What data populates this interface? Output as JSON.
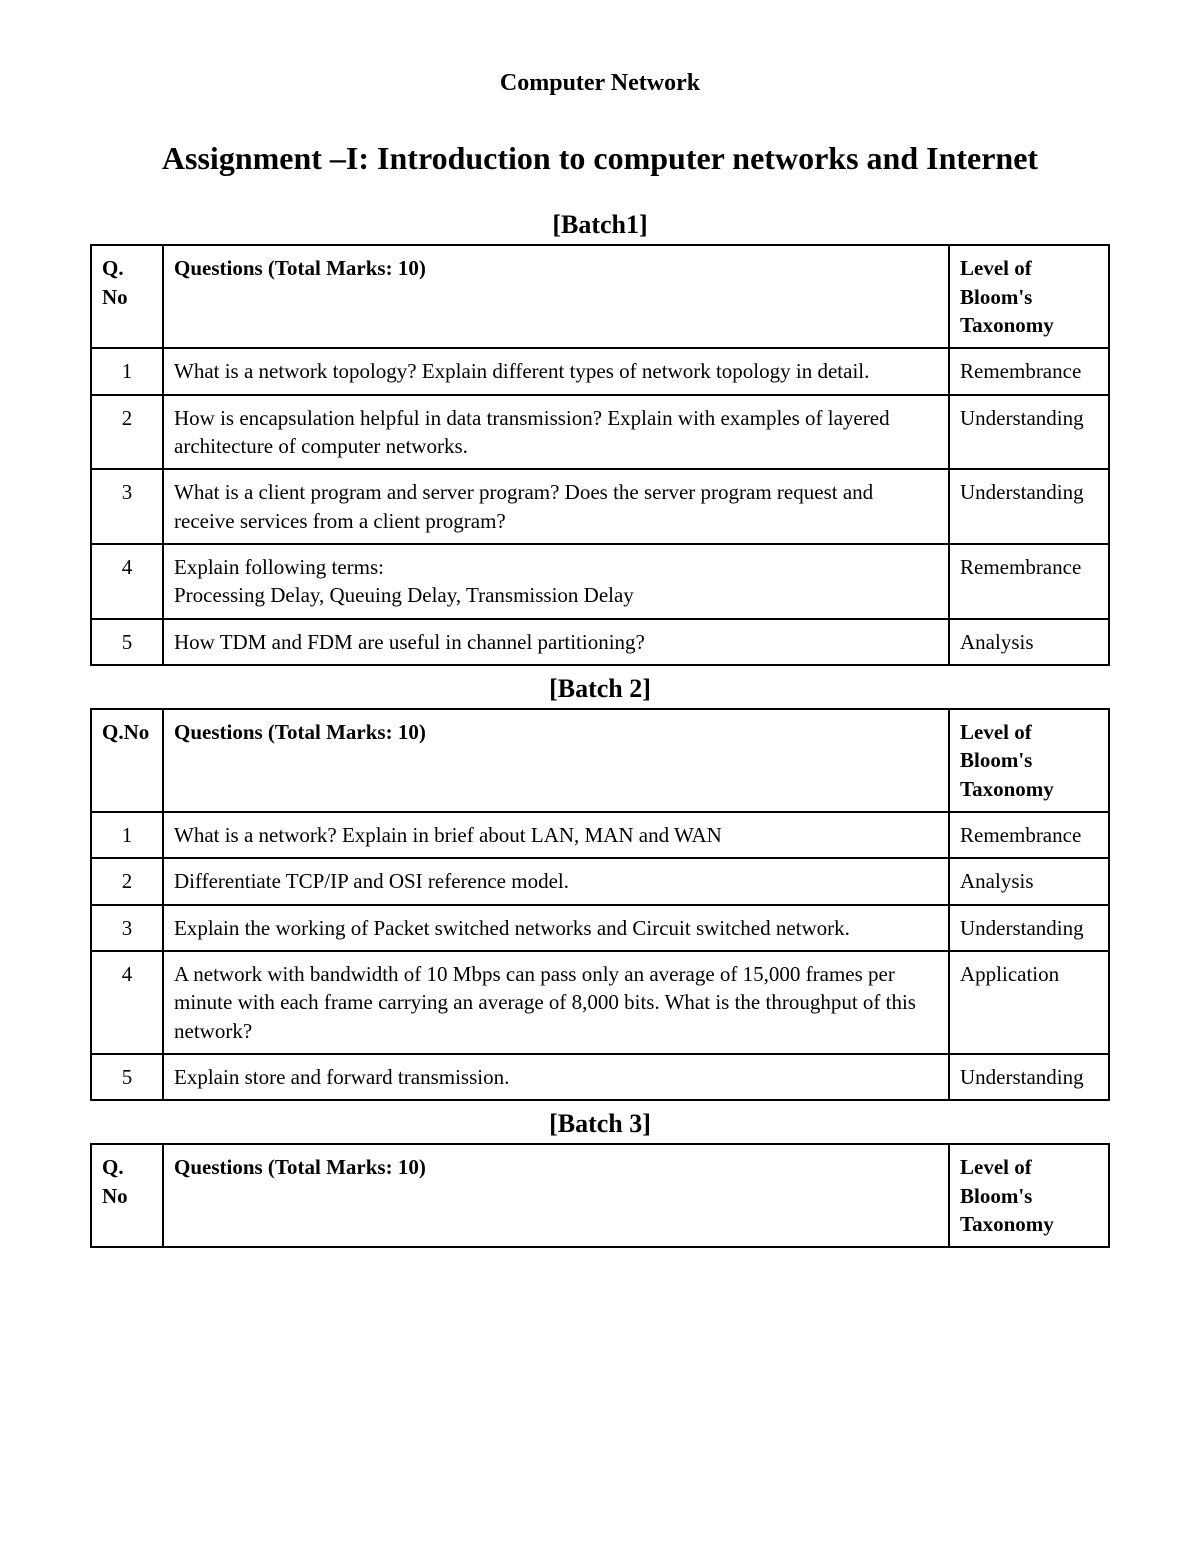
{
  "course_title": "Computer Network",
  "assignment_title": "Assignment –I: Introduction to computer networks and Internet",
  "columns": {
    "qno_a": "Q. No",
    "qno_b": "Q.No",
    "questions": "Questions (Total Marks: 10)",
    "level": "Level of Bloom's Taxonomy"
  },
  "batches": [
    {
      "title": "[Batch1]",
      "qno_header_key": "qno_a",
      "rows": [
        {
          "no": "1",
          "q": "What is a network topology? Explain different types of network topology in detail.",
          "level": "Remembrance"
        },
        {
          "no": "2",
          "q": "How is encapsulation helpful in data transmission? Explain with examples of layered architecture of computer networks.",
          "level": "Understanding"
        },
        {
          "no": "3",
          "q": "What is a client program and server program? Does the server program request and receive services from a client program?",
          "level": "Understanding"
        },
        {
          "no": "4",
          "q": "Explain following terms:\nProcessing Delay, Queuing Delay, Transmission Delay",
          "level": "Remembrance"
        },
        {
          "no": "5",
          "q": "How TDM and FDM are useful in channel partitioning?",
          "level": "Analysis"
        }
      ]
    },
    {
      "title": "[Batch 2]",
      "qno_header_key": "qno_b",
      "rows": [
        {
          "no": "1",
          "q": "What is a network? Explain in brief about LAN, MAN and WAN",
          "level": "Remembrance"
        },
        {
          "no": "2",
          "q": "Differentiate TCP/IP  and OSI reference model.",
          "level": "Analysis"
        },
        {
          "no": "3",
          "q": "Explain the working of Packet switched networks and Circuit switched network.",
          "level": "Understanding"
        },
        {
          "no": "4",
          "q": "A network with bandwidth of 10 Mbps can pass only an average of 15,000 frames per minute with each frame carrying an average of 8,000 bits. What is the throughput of this network?",
          "level": "Application"
        },
        {
          "no": "5",
          "q": "Explain store and forward transmission.",
          "level": "Understanding"
        }
      ]
    },
    {
      "title": "[Batch 3]",
      "qno_header_key": "qno_a",
      "rows": []
    }
  ]
}
